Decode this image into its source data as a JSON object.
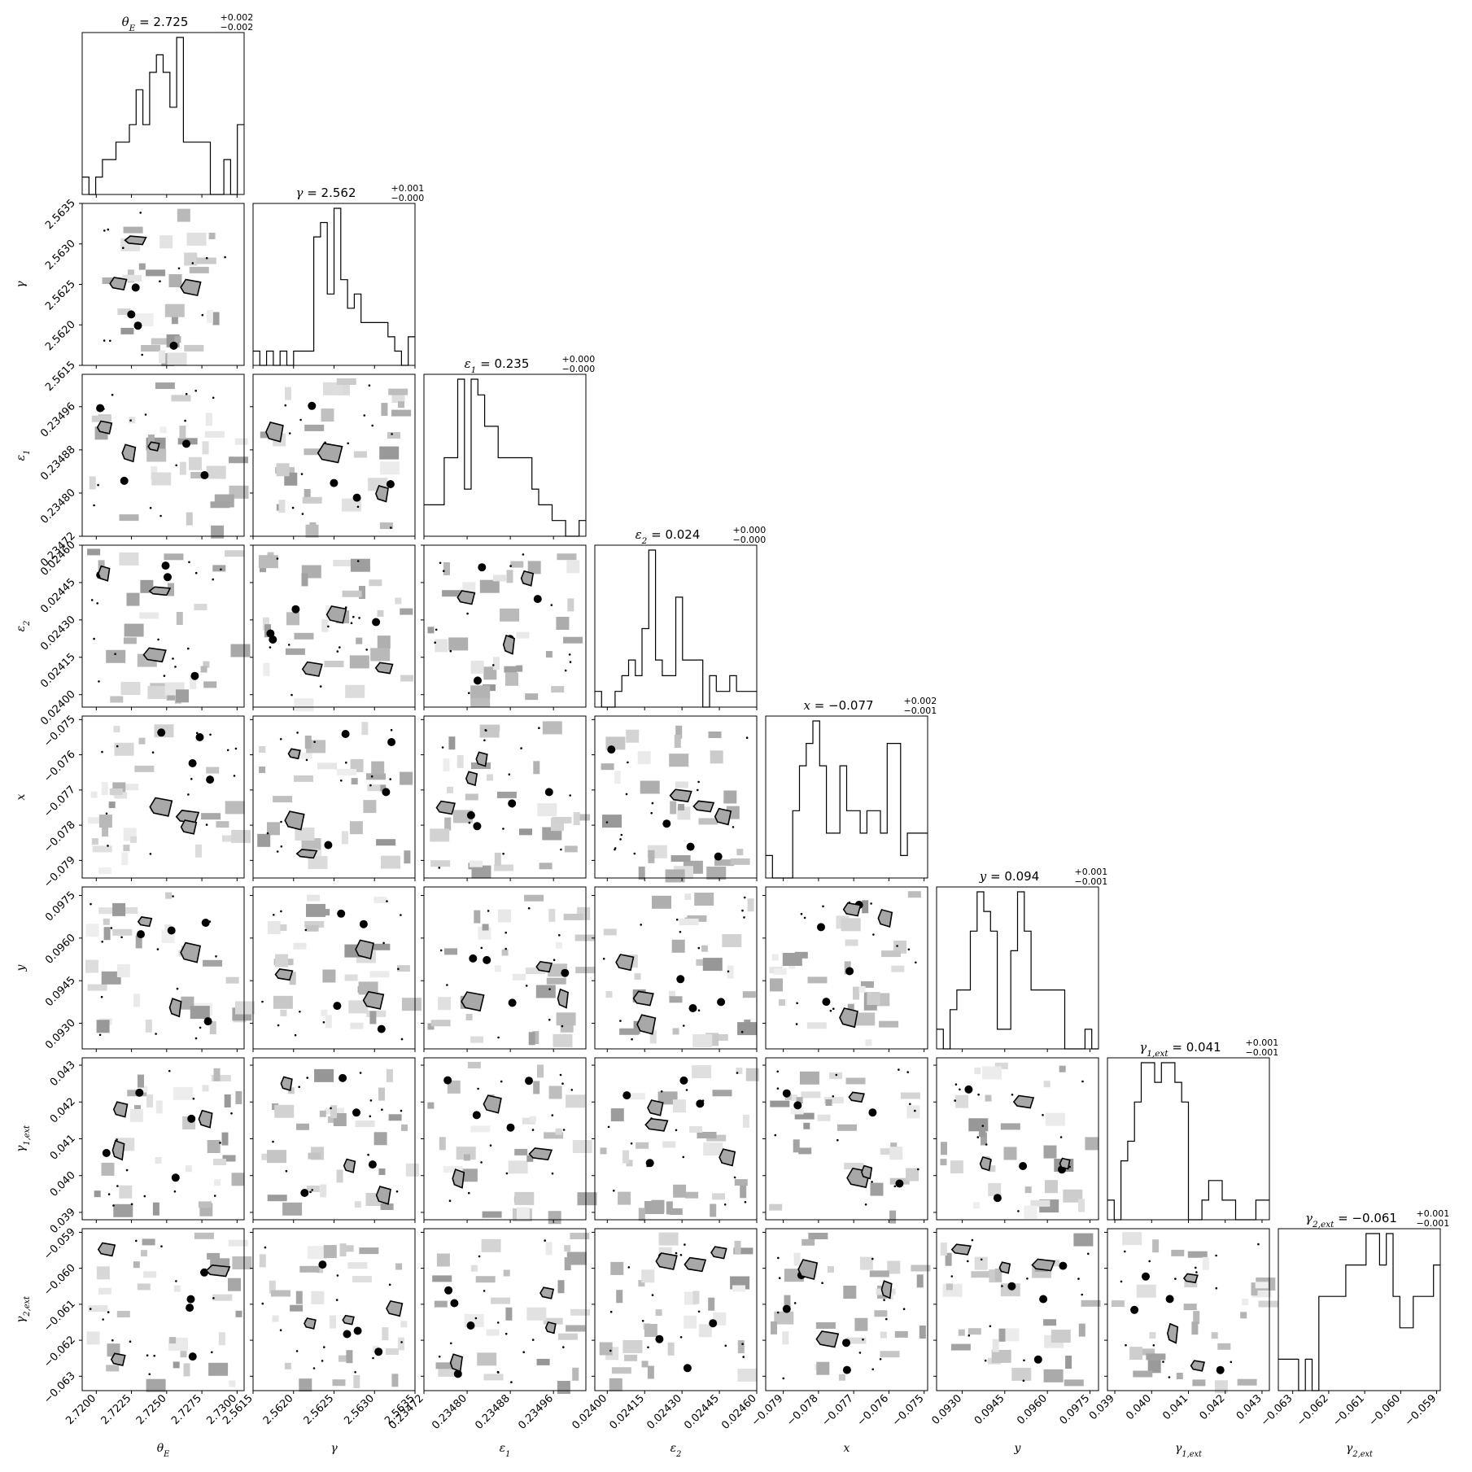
{
  "chart_data": {
    "type": "corner",
    "parameters": [
      {
        "symbol": "θ",
        "sub": "E",
        "ticks": [
          "2.7200",
          "2.7225",
          "2.7250",
          "2.7275",
          "2.7300"
        ],
        "range": [
          2.719,
          2.7305
        ],
        "title": {
          "value": "2.725",
          "plus": "+0.002",
          "minus": "−0.002"
        },
        "hist": [
          1,
          0,
          1,
          2,
          2,
          3,
          3,
          4,
          6,
          4,
          7,
          8,
          7,
          5,
          9,
          3,
          3,
          3,
          3,
          0,
          0,
          2,
          0,
          4
        ]
      },
      {
        "symbol": "γ",
        "sub": "",
        "ticks": [
          "2.5615",
          "2.5620",
          "2.5625",
          "2.5630",
          "2.5635"
        ],
        "range": [
          2.5615,
          2.5635
        ],
        "title": {
          "value": "2.562",
          "plus": "+0.001",
          "minus": "−0.000"
        },
        "hist": [
          1,
          0,
          1,
          0,
          1,
          0,
          1,
          1,
          1,
          9,
          10,
          5,
          11,
          6,
          4,
          5,
          3,
          3,
          3,
          3,
          2,
          1,
          0,
          2
        ]
      },
      {
        "symbol": "ε",
        "sub": "1",
        "ticks": [
          "0.23472",
          "0.23480",
          "0.23488",
          "0.23496"
        ],
        "range": [
          0.23472,
          0.23502
        ],
        "title": {
          "value": "0.235",
          "plus": "+0.000",
          "minus": "−0.000"
        },
        "hist": [
          2,
          2,
          2,
          5,
          5,
          10,
          3,
          10,
          9,
          7,
          7,
          5,
          5,
          5,
          5,
          5,
          3,
          2,
          2,
          1,
          1,
          0,
          0,
          1
        ]
      },
      {
        "symbol": "ε",
        "sub": "2",
        "ticks": [
          "0.02400",
          "0.02415",
          "0.02430",
          "0.02445",
          "0.02460"
        ],
        "range": [
          0.02395,
          0.0246
        ],
        "title": {
          "value": "0.024",
          "plus": "+0.000",
          "minus": "−0.000"
        },
        "hist": [
          1,
          0,
          0,
          1,
          2,
          3,
          2,
          5,
          10,
          3,
          2,
          2,
          7,
          3,
          3,
          3,
          0,
          2,
          1,
          1,
          2,
          1,
          1,
          1
        ]
      },
      {
        "symbol": "x",
        "sub": "",
        "ticks": [
          "−0.079",
          "−0.078",
          "−0.077",
          "−0.076",
          "−0.075"
        ],
        "range": [
          -0.0795,
          -0.0749
        ],
        "title": {
          "value": "−0.077",
          "plus": "+0.002",
          "minus": "−0.001"
        },
        "hist": [
          1,
          0,
          0,
          0,
          3,
          5,
          6,
          7,
          5,
          2,
          2,
          5,
          3,
          3,
          2,
          3,
          3,
          2,
          6,
          6,
          1,
          2,
          2,
          2
        ]
      },
      {
        "symbol": "y",
        "sub": "",
        "ticks": [
          "0.0930",
          "0.0945",
          "0.0960",
          "0.0975"
        ],
        "range": [
          0.0921,
          0.0978
        ],
        "title": {
          "value": "0.094",
          "plus": "+0.001",
          "minus": "−0.001"
        },
        "hist": [
          1,
          0,
          2,
          3,
          3,
          6,
          8,
          7,
          6,
          1,
          1,
          5,
          8,
          6,
          3,
          3,
          3,
          3,
          3,
          0,
          0,
          0,
          1,
          0
        ]
      },
      {
        "symbol": "γ",
        "sub": "1,ext",
        "ticks": [
          "0.039",
          "0.040",
          "0.041",
          "0.042",
          "0.043"
        ],
        "range": [
          0.0388,
          0.0432
        ],
        "title": {
          "value": "0.041",
          "plus": "+0.001",
          "minus": "−0.001"
        },
        "hist": [
          1,
          0,
          3,
          4,
          6,
          8,
          8,
          7,
          8,
          8,
          7,
          6,
          0,
          0,
          1,
          2,
          2,
          1,
          1,
          0,
          0,
          0,
          1,
          1
        ]
      },
      {
        "symbol": "γ",
        "sub": "2,ext",
        "ticks": [
          "−0.063",
          "−0.062",
          "−0.061",
          "−0.060",
          "−0.059"
        ],
        "range": [
          -0.0634,
          -0.0589
        ],
        "title": {
          "value": "−0.061",
          "plus": "+0.001",
          "minus": "−0.001"
        },
        "hist": [
          1,
          1,
          1,
          0,
          1,
          0,
          3,
          3,
          3,
          3,
          4,
          4,
          4,
          5,
          5,
          4,
          5,
          3,
          2,
          2,
          3,
          3,
          3,
          4
        ]
      }
    ],
    "contour_color": "#000000",
    "density_fill": "#c0c0c0",
    "grid": false
  }
}
